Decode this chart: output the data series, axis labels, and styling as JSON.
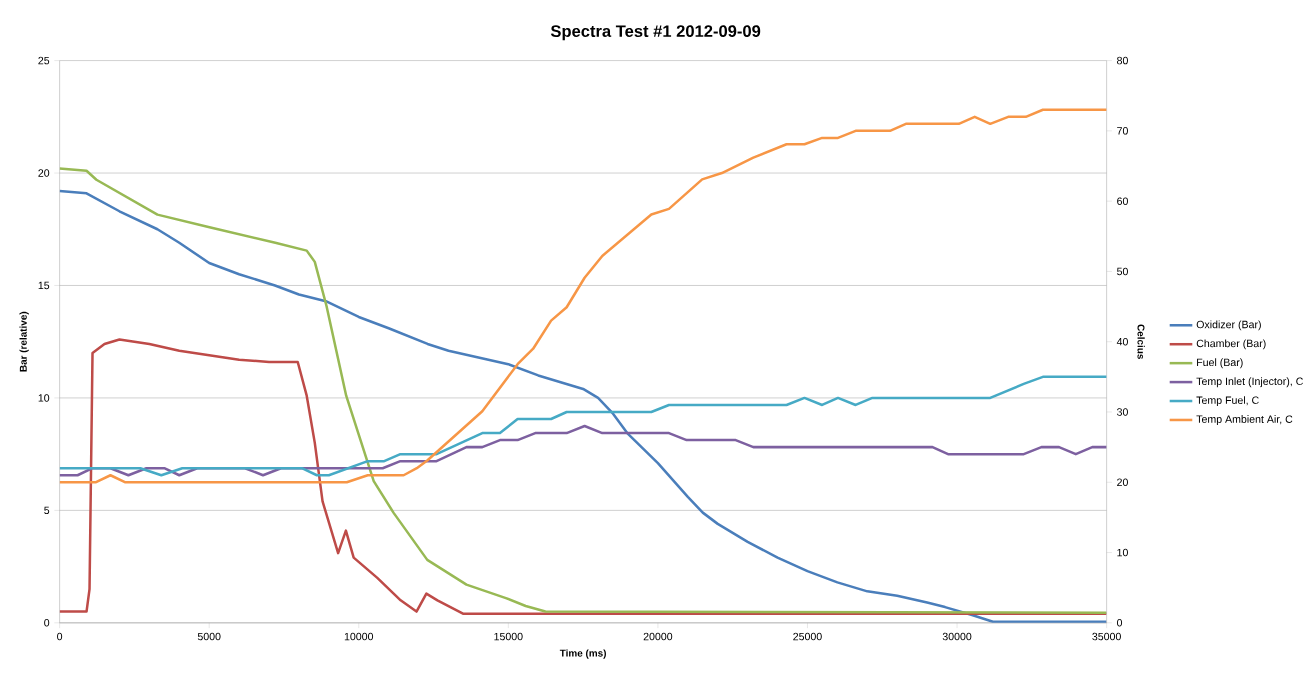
{
  "chart_data": {
    "type": "line",
    "title": "Spectra Test #1 2012-09-09",
    "xlabel": "Time (ms)",
    "ylabel": "Bar (relative)",
    "y2label": "Celcius",
    "xlim": [
      0,
      35000
    ],
    "xticks": [
      0,
      5000,
      10000,
      15000,
      20000,
      25000,
      30000,
      35000
    ],
    "ylim": [
      0,
      25
    ],
    "yticks": [
      0,
      5,
      10,
      15,
      20,
      25
    ],
    "y2lim": [
      0,
      80
    ],
    "y2ticks": [
      0,
      10,
      20,
      30,
      40,
      50,
      60,
      70,
      80
    ],
    "grid": "y",
    "legend": "right",
    "series": [
      {
        "name": "Oxidizer (Bar)",
        "color": "#4a7ebb",
        "x": [
          0,
          900,
          2000,
          3270,
          4000,
          5000,
          6000,
          7200,
          8000,
          8900,
          10000,
          11000,
          12300,
          13000,
          14000,
          15000,
          16000,
          17000,
          17500,
          18000,
          18500,
          19000,
          20000,
          21000,
          21500,
          22000,
          23000,
          24000,
          25000,
          26000,
          27000,
          28000,
          29000,
          29600,
          30500,
          31200,
          35000
        ],
        "values": [
          19.2,
          19.1,
          18.3,
          17.5,
          16.9,
          16.0,
          15.5,
          15.0,
          14.6,
          14.3,
          13.6,
          13.1,
          12.4,
          12.1,
          11.8,
          11.5,
          11.0,
          10.6,
          10.4,
          10.0,
          9.3,
          8.4,
          7.1,
          5.6,
          4.9,
          4.4,
          3.6,
          2.9,
          2.3,
          1.8,
          1.4,
          1.2,
          0.9,
          0.7,
          0.35,
          0.05,
          0.05
        ]
      },
      {
        "name": "Chamber (Bar)",
        "color": "#be4b48",
        "x": [
          0,
          900,
          1000,
          1100,
          1500,
          2000,
          3000,
          4000,
          5000,
          6000,
          7000,
          7960,
          8260,
          8530,
          8790,
          9310,
          9570,
          9830,
          10620,
          11400,
          11930,
          12260,
          12630,
          13500,
          15000,
          35000
        ],
        "values": [
          0.5,
          0.5,
          1.5,
          12.0,
          12.4,
          12.6,
          12.4,
          12.1,
          11.9,
          11.7,
          11.6,
          11.6,
          10.1,
          8.0,
          5.4,
          3.1,
          4.1,
          2.9,
          2.0,
          1.0,
          0.5,
          1.3,
          1.0,
          0.4,
          0.4,
          0.4
        ]
      },
      {
        "name": "Fuel (Bar)",
        "color": "#98b954",
        "x": [
          0,
          900,
          1230,
          3270,
          4975,
          7210,
          8260,
          8530,
          8920,
          9580,
          10500,
          11160,
          12290,
          13600,
          14920,
          15580,
          16240,
          35000
        ],
        "values": [
          20.2,
          20.1,
          19.7,
          18.15,
          17.6,
          16.9,
          16.55,
          16.05,
          14.1,
          10.1,
          6.3,
          4.9,
          2.8,
          1.7,
          1.1,
          0.75,
          0.5,
          0.45
        ]
      },
      {
        "name": "Temp Inlet (Injector), C",
        "color": "#7d60a0",
        "axis": "y2",
        "x": [
          0,
          600,
          1100,
          1700,
          2300,
          2900,
          3500,
          4000,
          4600,
          6200,
          6800,
          7400,
          10800,
          11390,
          12600,
          13600,
          14130,
          14720,
          15310,
          15900,
          16950,
          17550,
          18140,
          20370,
          20960,
          22600,
          23190,
          29180,
          29700,
          32230,
          32820,
          33410,
          33970,
          34520,
          35000
        ],
        "values": [
          21,
          21,
          22,
          22,
          21,
          22,
          22,
          21,
          22,
          22,
          21,
          22,
          22,
          23,
          23,
          25,
          25,
          26,
          26,
          27,
          27,
          28,
          27,
          27,
          26,
          26,
          25,
          25,
          24,
          24,
          25,
          25,
          24,
          25,
          25
        ]
      },
      {
        "name": "Temp Fuel, C",
        "color": "#46aac5",
        "axis": "y2",
        "x": [
          0,
          2700,
          3400,
          4100,
          8100,
          8600,
          9000,
          10300,
          10850,
          11390,
          12600,
          14130,
          14720,
          15310,
          16430,
          16950,
          19780,
          20370,
          24300,
          24900,
          25490,
          26020,
          26610,
          27170,
          31110,
          32230,
          32870,
          35000
        ],
        "values": [
          22,
          22,
          21,
          22,
          22,
          21,
          21,
          23,
          23,
          24,
          24,
          27,
          27,
          29,
          29,
          30,
          30,
          31,
          31,
          32,
          31,
          32,
          31,
          32,
          32,
          34,
          35,
          35
        ]
      },
      {
        "name": "Temp Ambient Air, C",
        "color": "#f79646",
        "axis": "y2",
        "x": [
          0,
          1200,
          1700,
          2200,
          9600,
          10300,
          11500,
          11940,
          12290,
          14130,
          15310,
          15830,
          16430,
          16950,
          17550,
          18140,
          19780,
          20370,
          21480,
          22140,
          23190,
          24300,
          24900,
          25490,
          26020,
          26610,
          27760,
          28290,
          30060,
          30590,
          31110,
          31710,
          32300,
          32870,
          35000
        ],
        "values": [
          20,
          20,
          21,
          20,
          20,
          21,
          21,
          22,
          23.1,
          30.1,
          36.8,
          39.0,
          43.0,
          44.9,
          49.1,
          52.2,
          58.1,
          58.9,
          63.1,
          64.0,
          66.2,
          68.1,
          68.1,
          69,
          69,
          70,
          70,
          71,
          71,
          72,
          71,
          72,
          72,
          73,
          73
        ]
      }
    ]
  }
}
